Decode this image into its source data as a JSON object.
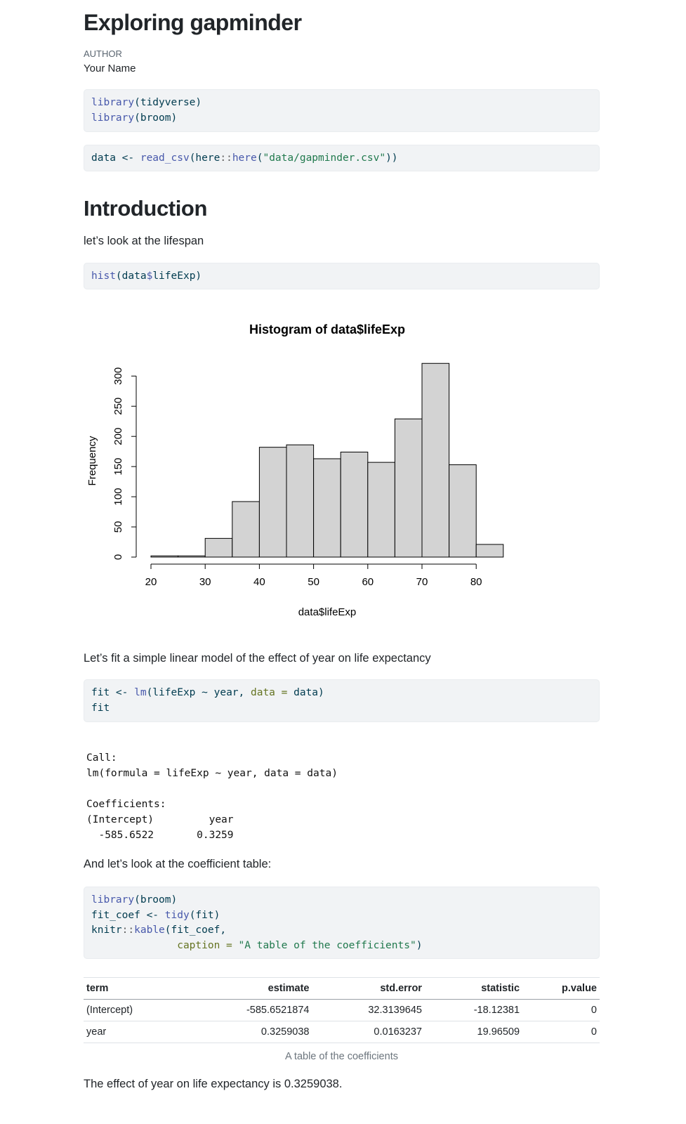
{
  "header": {
    "title": "Exploring gapminder",
    "author_label": "AUTHOR",
    "author_name": "Your Name"
  },
  "code1": {
    "line1_fn": "library",
    "line1_rest": "(tidyverse)",
    "line2_fn": "library",
    "line2_rest": "(broom)"
  },
  "code2": {
    "a": "data <- ",
    "b": "read_csv",
    "c": "(here",
    "d": "::",
    "e": "here",
    "f": "(",
    "g": "\"data/gapminder.csv\"",
    "h": "))"
  },
  "intro": {
    "heading": "Introduction",
    "text": "let’s look at the lifespan"
  },
  "code3": {
    "fn": "hist",
    "rest": "(data",
    "dollar": "$",
    "end": "lifeExp)"
  },
  "chart_data": {
    "type": "bar",
    "title": "Histogram of data$lifeExp",
    "xlabel": "data$lifeExp",
    "ylabel": "Frequency",
    "bins": [
      [
        20,
        25
      ],
      [
        25,
        30
      ],
      [
        30,
        35
      ],
      [
        35,
        40
      ],
      [
        40,
        45
      ],
      [
        45,
        50
      ],
      [
        50,
        55
      ],
      [
        55,
        60
      ],
      [
        60,
        65
      ],
      [
        65,
        70
      ],
      [
        70,
        75
      ],
      [
        75,
        80
      ],
      [
        80,
        85
      ]
    ],
    "values": [
      2,
      2,
      31,
      92,
      182,
      186,
      163,
      174,
      157,
      229,
      321,
      153,
      21
    ],
    "x_ticks": [
      "20",
      "30",
      "40",
      "50",
      "60",
      "70",
      "80"
    ],
    "y_ticks": [
      "0",
      "50",
      "100",
      "150",
      "200",
      "250",
      "300"
    ],
    "xlim": [
      20,
      85
    ],
    "ylim": [
      0,
      300
    ],
    "bar_color": "#d3d3d3",
    "grid": false
  },
  "model_text": "Let’s fit a simple linear model of the effect of year on life expectancy",
  "code4": {
    "l1a": "fit <- ",
    "l1b": "lm",
    "l1c": "(lifeExp ~ year, ",
    "l1d": "data =",
    "l1e": " data)",
    "l2": "fit"
  },
  "output": {
    "call_label": "Call:",
    "call_line": "lm(formula = lifeExp ~ year, data = data)",
    "coef_label": "Coefficients:",
    "coef_header": "(Intercept)         year  ",
    "coef_values": "  -585.6522       0.3259  "
  },
  "coef_text": "And let’s look at the coefficient table:",
  "code5": {
    "l1fn": "library",
    "l1rest": "(broom)",
    "l2a": "fit_coef <- ",
    "l2fn": "tidy",
    "l2rest": "(fit)",
    "l3a": "knitr",
    "l3b": "::",
    "l3fn": "kable",
    "l3rest": "(fit_coef,",
    "l4pad": "              ",
    "l4arg": "caption =",
    "l4sp": " ",
    "l4str": "\"A table of the coefficients\"",
    "l4end": ")"
  },
  "table": {
    "headers": [
      "term",
      "estimate",
      "std.error",
      "statistic",
      "p.value"
    ],
    "rows": [
      [
        "(Intercept)",
        "-585.6521874",
        "32.3139645",
        "-18.12381",
        "0"
      ],
      [
        "year",
        "0.3259038",
        "0.0163237",
        "19.96509",
        "0"
      ]
    ],
    "caption": "A table of the coefficients"
  },
  "conclusion": "The effect of year on life expectancy is 0.3259038."
}
